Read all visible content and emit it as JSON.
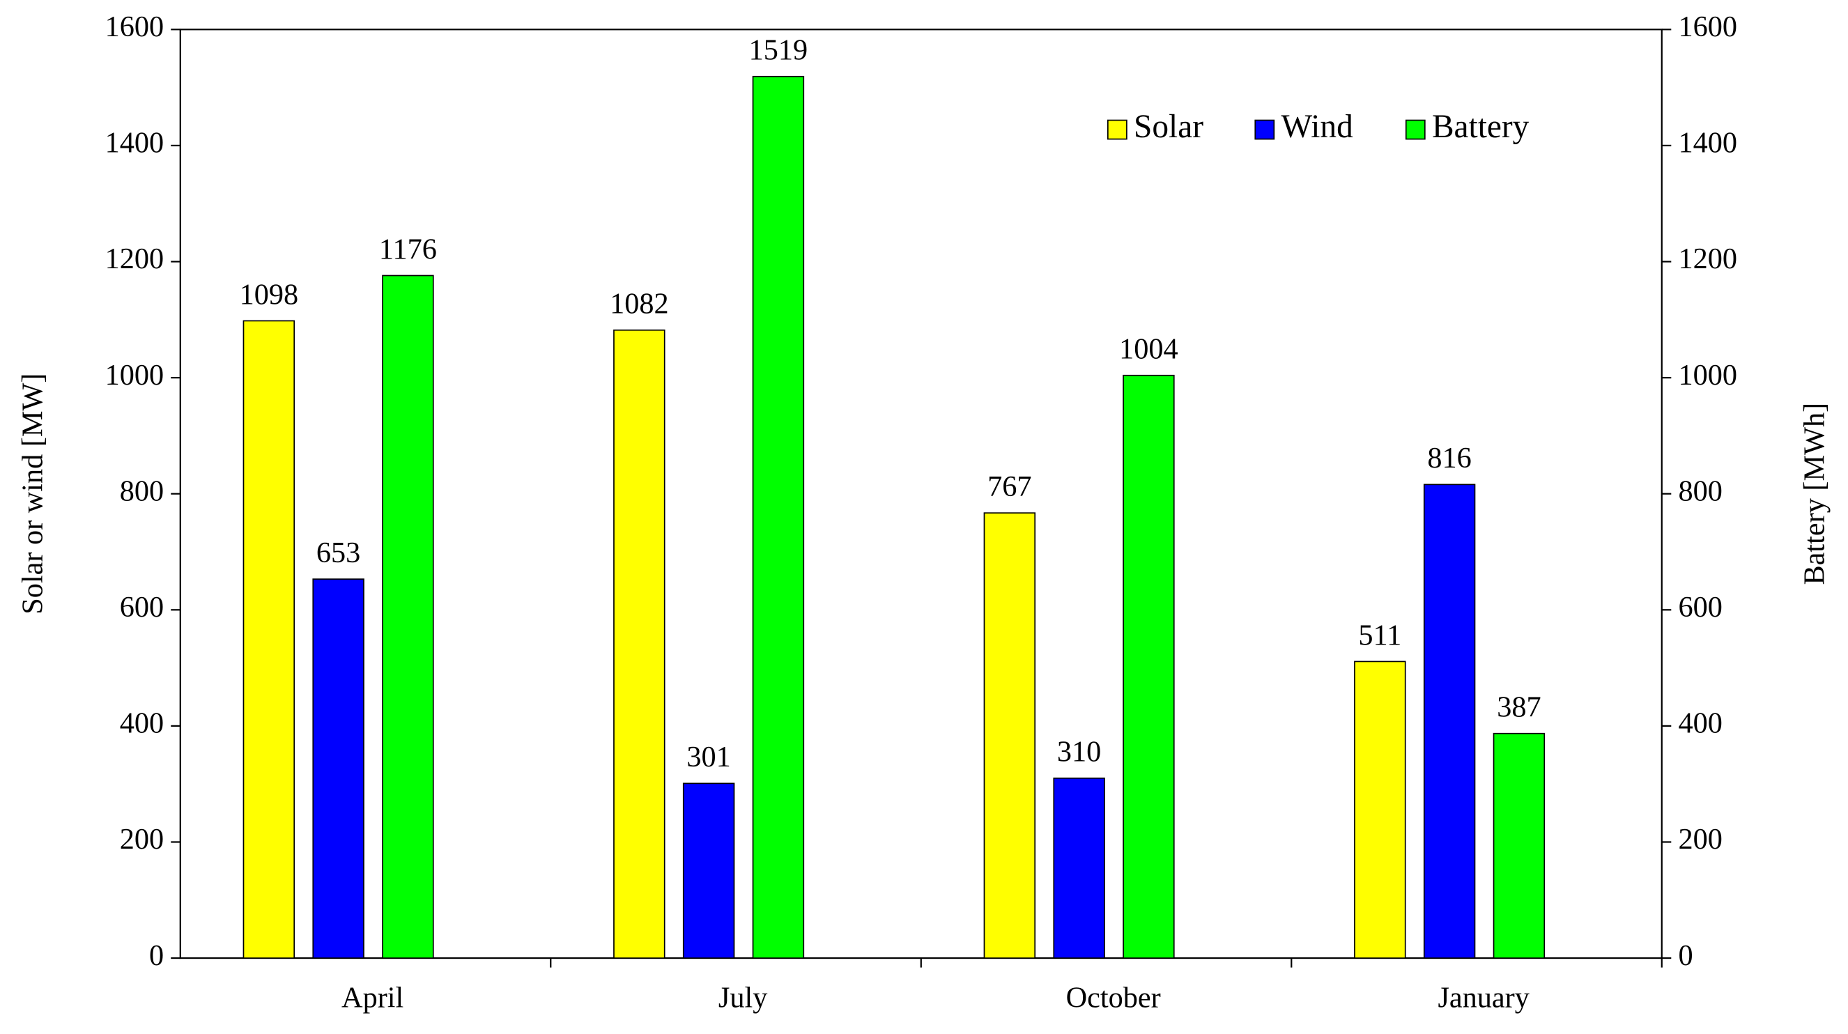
{
  "chart_data": {
    "type": "bar",
    "categories": [
      "April",
      "July",
      "October",
      "January"
    ],
    "series": [
      {
        "name": "Solar",
        "color": "#ffff00",
        "values": [
          1098,
          1082,
          767,
          511
        ]
      },
      {
        "name": "Wind",
        "color": "#0000ff",
        "values": [
          653,
          301,
          310,
          816
        ]
      },
      {
        "name": "Battery",
        "color": "#00ff00",
        "axis": "y2",
        "values": [
          1176,
          1519,
          1004,
          387
        ]
      }
    ],
    "y_label": "Solar or wind [MW]",
    "y2_label": "Battery  [MWh]",
    "ylim": [
      0,
      1600
    ],
    "yticks": [
      0,
      200,
      400,
      600,
      800,
      1000,
      1200,
      1400,
      1600
    ],
    "y2lim": [
      0,
      1600
    ],
    "y2ticks": [
      0,
      200,
      400,
      600,
      800,
      1000,
      1200,
      1400,
      1600
    ],
    "grid": false,
    "legend": "upper right",
    "data_labels": true
  }
}
